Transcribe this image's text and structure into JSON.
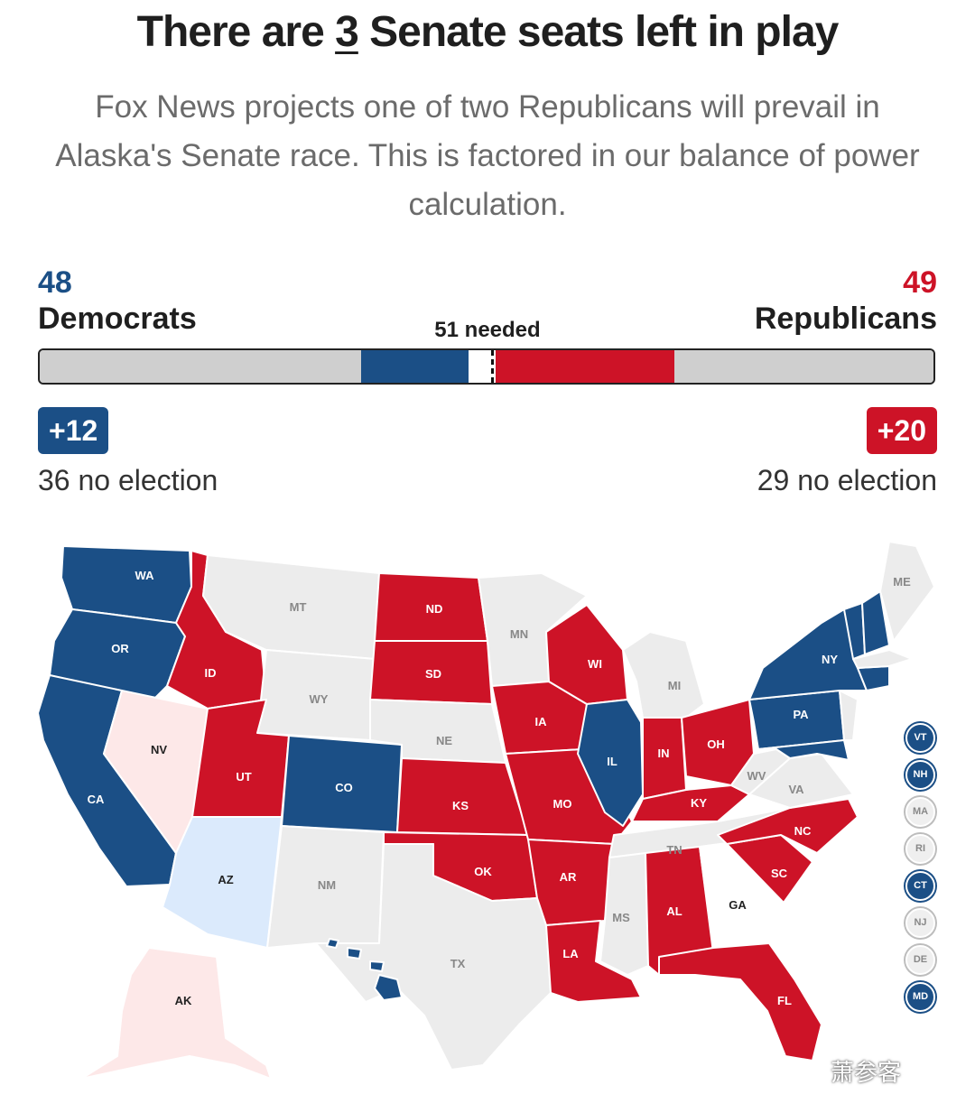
{
  "header": {
    "title_prefix": "There are ",
    "title_number": "3",
    "title_suffix": " Senate seats left in play",
    "subtitle": "Fox News projects one of two Republicans will prevail in Alaska's Senate race. This is factored in our balance of power calculation."
  },
  "balance": {
    "dem_count": "48",
    "dem_label": "Democrats",
    "rep_count": "49",
    "rep_label": "Republicans",
    "needed_label": "51 needed",
    "dem_gain": "+12",
    "rep_gain": "+20",
    "dem_no_election": "36 no election",
    "rep_no_election": "29 no election",
    "total_seats": 100,
    "needed": 51,
    "dem_elected": 12,
    "dem_holdover": 36,
    "rep_elected": 20,
    "rep_holdover": 29
  },
  "colors": {
    "dem": "#1b4f86",
    "rep": "#cd1327",
    "dem_lean": "#dbeafc",
    "rep_lean": "#fde8e8",
    "no_election": "#ececec",
    "undecided": "#ffffff",
    "neutral_bar": "#cfcfcf"
  },
  "map": {
    "states": [
      {
        "id": "WA",
        "label": "WA",
        "status": "dem"
      },
      {
        "id": "OR",
        "label": "OR",
        "status": "dem"
      },
      {
        "id": "CA",
        "label": "CA",
        "status": "dem"
      },
      {
        "id": "NV",
        "label": "NV",
        "status": "rep_lean"
      },
      {
        "id": "ID",
        "label": "ID",
        "status": "rep"
      },
      {
        "id": "MT",
        "label": "MT",
        "status": "no_election"
      },
      {
        "id": "WY",
        "label": "WY",
        "status": "no_election"
      },
      {
        "id": "UT",
        "label": "UT",
        "status": "rep"
      },
      {
        "id": "AZ",
        "label": "AZ",
        "status": "dem_lean"
      },
      {
        "id": "CO",
        "label": "CO",
        "status": "dem"
      },
      {
        "id": "NM",
        "label": "NM",
        "status": "no_election"
      },
      {
        "id": "ND",
        "label": "ND",
        "status": "rep"
      },
      {
        "id": "SD",
        "label": "SD",
        "status": "rep"
      },
      {
        "id": "NE",
        "label": "NE",
        "status": "no_election"
      },
      {
        "id": "KS",
        "label": "KS",
        "status": "rep"
      },
      {
        "id": "OK",
        "label": "OK",
        "status": "rep"
      },
      {
        "id": "TX",
        "label": "TX",
        "status": "no_election"
      },
      {
        "id": "MN",
        "label": "MN",
        "status": "no_election"
      },
      {
        "id": "IA",
        "label": "IA",
        "status": "rep"
      },
      {
        "id": "MO",
        "label": "MO",
        "status": "rep"
      },
      {
        "id": "AR",
        "label": "AR",
        "status": "rep"
      },
      {
        "id": "LA",
        "label": "LA",
        "status": "rep"
      },
      {
        "id": "WI",
        "label": "WI",
        "status": "rep"
      },
      {
        "id": "IL",
        "label": "IL",
        "status": "dem"
      },
      {
        "id": "MI",
        "label": "MI",
        "status": "no_election"
      },
      {
        "id": "IN",
        "label": "IN",
        "status": "rep"
      },
      {
        "id": "OH",
        "label": "OH",
        "status": "rep"
      },
      {
        "id": "KY",
        "label": "KY",
        "status": "rep"
      },
      {
        "id": "TN",
        "label": "TN",
        "status": "no_election"
      },
      {
        "id": "MS",
        "label": "MS",
        "status": "no_election"
      },
      {
        "id": "AL",
        "label": "AL",
        "status": "rep"
      },
      {
        "id": "GA",
        "label": "GA",
        "status": "undecided"
      },
      {
        "id": "FL",
        "label": "FL",
        "status": "rep"
      },
      {
        "id": "SC",
        "label": "SC",
        "status": "rep"
      },
      {
        "id": "NC",
        "label": "NC",
        "status": "rep"
      },
      {
        "id": "VA",
        "label": "VA",
        "status": "no_election"
      },
      {
        "id": "WV",
        "label": "WV",
        "status": "no_election"
      },
      {
        "id": "PA",
        "label": "PA",
        "status": "dem"
      },
      {
        "id": "NY",
        "label": "NY",
        "status": "dem"
      },
      {
        "id": "ME",
        "label": "ME",
        "status": "no_election"
      },
      {
        "id": "AK",
        "label": "AK",
        "status": "rep_lean"
      },
      {
        "id": "HI",
        "label": "",
        "status": "dem"
      }
    ],
    "small_states": [
      {
        "label": "VT",
        "status": "dem"
      },
      {
        "label": "NH",
        "status": "dem"
      },
      {
        "label": "MA",
        "status": "no_election"
      },
      {
        "label": "RI",
        "status": "no_election"
      },
      {
        "label": "CT",
        "status": "dem"
      },
      {
        "label": "NJ",
        "status": "no_election"
      },
      {
        "label": "DE",
        "status": "no_election"
      },
      {
        "label": "MD",
        "status": "dem"
      }
    ]
  },
  "watermark": "萧参客"
}
